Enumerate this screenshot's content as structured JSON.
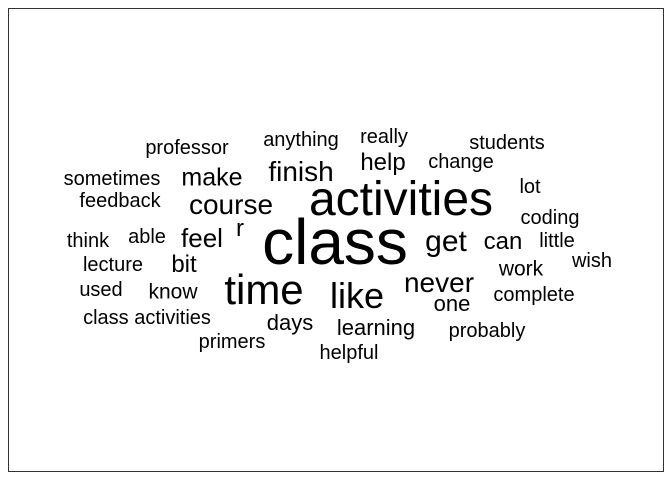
{
  "text_color": "#000000",
  "background_color": "#ffffff",
  "border_color": "#333333",
  "words": [
    {
      "text": "class",
      "weight": 1.0
    },
    {
      "text": "activities",
      "weight": 0.74
    },
    {
      "text": "time",
      "weight": 0.62
    },
    {
      "text": "like",
      "weight": 0.5
    },
    {
      "text": "get",
      "weight": 0.4
    },
    {
      "text": "never",
      "weight": 0.37
    },
    {
      "text": "course",
      "weight": 0.37
    },
    {
      "text": "finish",
      "weight": 0.37
    },
    {
      "text": "feel",
      "weight": 0.34
    },
    {
      "text": "make",
      "weight": 0.32
    },
    {
      "text": "help",
      "weight": 0.31
    },
    {
      "text": "can",
      "weight": 0.31
    },
    {
      "text": "bit",
      "weight": 0.31
    },
    {
      "text": "r",
      "weight": 0.31
    },
    {
      "text": "learning",
      "weight": 0.28
    },
    {
      "text": "days",
      "weight": 0.28
    },
    {
      "text": "one",
      "weight": 0.28
    },
    {
      "text": "work",
      "weight": 0.27
    },
    {
      "text": "know",
      "weight": 0.26
    },
    {
      "text": "professor",
      "weight": 0.24
    },
    {
      "text": "anything",
      "weight": 0.24
    },
    {
      "text": "really",
      "weight": 0.24
    },
    {
      "text": "students",
      "weight": 0.24
    },
    {
      "text": "change",
      "weight": 0.24
    },
    {
      "text": "sometimes",
      "weight": 0.24
    },
    {
      "text": "feedback",
      "weight": 0.24
    },
    {
      "text": "lot",
      "weight": 0.24
    },
    {
      "text": "coding",
      "weight": 0.24
    },
    {
      "text": "think",
      "weight": 0.24
    },
    {
      "text": "able",
      "weight": 0.24
    },
    {
      "text": "little",
      "weight": 0.24
    },
    {
      "text": "wish",
      "weight": 0.24
    },
    {
      "text": "lecture",
      "weight": 0.24
    },
    {
      "text": "used",
      "weight": 0.24
    },
    {
      "text": "complete",
      "weight": 0.24
    },
    {
      "text": "class activities",
      "weight": 0.24
    },
    {
      "text": "primers",
      "weight": 0.24
    },
    {
      "text": "helpful",
      "weight": 0.24
    },
    {
      "text": "probably",
      "weight": 0.24
    }
  ]
}
